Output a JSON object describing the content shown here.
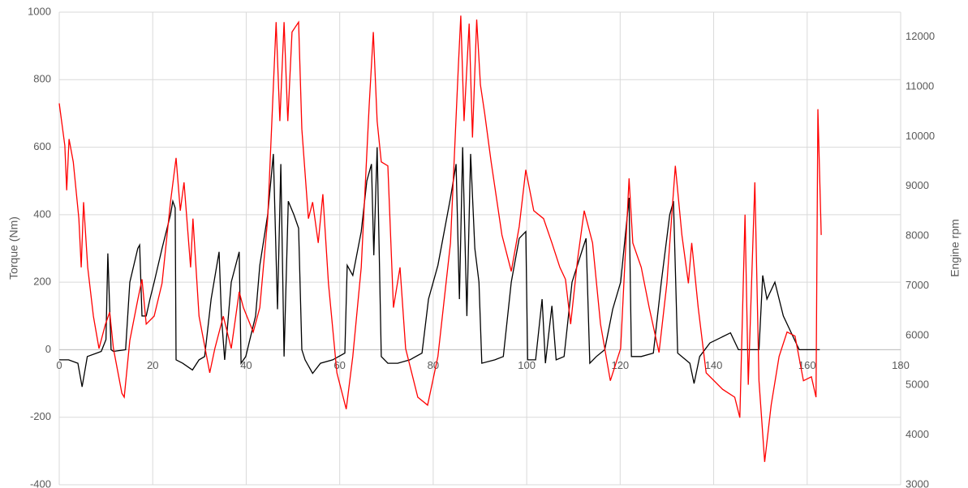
{
  "chart_data": {
    "type": "line",
    "ylabel": "Torque (Nm)",
    "y2label": "Engine rpm",
    "xlim": [
      0,
      180
    ],
    "xticks": [
      0,
      20,
      40,
      60,
      80,
      100,
      120,
      140,
      160,
      180
    ],
    "ylim": [
      -400,
      1000
    ],
    "yticks": [
      -400,
      -200,
      0,
      200,
      400,
      600,
      800,
      1000
    ],
    "y2lim": [
      3000,
      12500
    ],
    "y2ticks": [
      3000,
      4000,
      5000,
      6000,
      7000,
      8000,
      9000,
      10000,
      11000,
      12000
    ],
    "grid": true,
    "series": [
      {
        "color": "#000000",
        "axis": "y",
        "x": [
          0,
          2,
          4,
          4.9,
          6,
          8,
          9,
          10,
          10.4,
          11.1,
          11.6,
          14.2,
          15.1,
          16.8,
          17.2,
          17.7,
          18.6,
          19.4,
          20.3,
          22,
          23.8,
          24.3,
          24.8,
          25,
          26.4,
          28.5,
          29.9,
          31.1,
          32.5,
          34.2,
          34.7,
          35.4,
          36.8,
          38.5,
          38.9,
          39.9,
          42,
          42.9,
          44.6,
          45.8,
          46.7,
          47.4,
          48.1,
          49,
          50.2,
          51.2,
          51.9,
          52.6,
          54.2,
          55.9,
          58.5,
          61.1,
          61.6,
          62.8,
          64.6,
          65.8,
          66.8,
          67.3,
          68,
          68.9,
          70.3,
          72.4,
          75,
          77.6,
          79,
          81,
          83.7,
          84.9,
          85.6,
          86.3,
          87.2,
          88,
          88.9,
          89.8,
          90.4,
          93.2,
          95,
          96.7,
          98.4,
          99.8,
          100.2,
          101.9,
          103.3,
          104,
          105.4,
          106.3,
          108,
          109.7,
          112,
          112.7,
          113.5,
          114.9,
          116.7,
          118.4,
          120.1,
          121.9,
          122.4,
          124.5,
          127.1,
          128.8,
          130.6,
          131.4,
          132.3,
          134.9,
          135.8,
          137,
          139.2,
          143.6,
          145.3,
          149.7,
          150.5,
          151.4,
          153.1,
          154.9,
          156.6,
          158.3,
          162.7
        ],
        "values": [
          -30,
          -30,
          -40,
          -110,
          -20,
          -10,
          -5,
          30,
          285,
          0,
          -5,
          0,
          200,
          300,
          310,
          100,
          100,
          150,
          200,
          300,
          400,
          440,
          420,
          -30,
          -40,
          -60,
          -30,
          -20,
          150,
          290,
          100,
          -30,
          200,
          290,
          -40,
          -20,
          100,
          250,
          400,
          580,
          120,
          550,
          -20,
          440,
          400,
          360,
          0,
          -30,
          -70,
          -40,
          -30,
          -10,
          250,
          220,
          350,
          500,
          550,
          280,
          600,
          -20,
          -40,
          -40,
          -30,
          -10,
          150,
          250,
          450,
          550,
          150,
          600,
          100,
          580,
          300,
          200,
          -40,
          -30,
          -20,
          200,
          330,
          350,
          -30,
          -30,
          150,
          -40,
          130,
          -30,
          -20,
          200,
          300,
          330,
          -40,
          -20,
          0,
          120,
          200,
          450,
          -20,
          -20,
          -10,
          200,
          400,
          440,
          -10,
          -40,
          -100,
          -20,
          20,
          50,
          0,
          0,
          220,
          150,
          200,
          100,
          50,
          0,
          0
        ]
      },
      {
        "color": "#ff0000",
        "axis": "y2",
        "x": [
          0,
          1.2,
          1.6,
          2.1,
          3,
          4.2,
          4.7,
          5.2,
          6.1,
          7.3,
          8.5,
          9.9,
          10.8,
          11.6,
          13.4,
          13.9,
          15.1,
          16.8,
          17.7,
          18.6,
          20.3,
          22,
          23.8,
          25,
          25.9,
          26.7,
          28.1,
          28.6,
          29.9,
          32.2,
          33.3,
          35.1,
          36.8,
          38.5,
          39.4,
          41.5,
          42.9,
          44.6,
          46.4,
          47.2,
          48.1,
          48.9,
          49.8,
          51.2,
          51.9,
          53.3,
          54.2,
          55.4,
          56.4,
          57.6,
          59.4,
          61.4,
          62.8,
          64.6,
          66.3,
          67.2,
          68,
          68.9,
          70.3,
          71.5,
          72.9,
          74.1,
          76.7,
          78.8,
          81,
          83.7,
          85.4,
          85.9,
          86.6,
          87.7,
          88.4,
          89.3,
          90.1,
          91,
          92.4,
          94.7,
          96.7,
          98.4,
          99.8,
          101.5,
          103.6,
          105.4,
          107.1,
          108.3,
          109.4,
          110.9,
          112.3,
          114.1,
          115.8,
          117.9,
          120.1,
          121.9,
          122.7,
          124.5,
          126.2,
          128.3,
          130,
          131.8,
          133.2,
          134.6,
          135.3,
          136.7,
          138.4,
          141.9,
          144.5,
          145.6,
          146.7,
          147.4,
          148.8,
          149.7,
          150.9,
          152.3,
          154,
          155.7,
          157.4,
          159.2,
          160.9,
          161.9,
          162.3,
          163
        ],
        "values": [
          10667,
          9820,
          8920,
          9950,
          9490,
          8350,
          7370,
          8680,
          7370,
          6390,
          5740,
          6230,
          6470,
          5740,
          4840,
          4760,
          5900,
          6720,
          7130,
          6230,
          6390,
          7050,
          8680,
          9570,
          8510,
          9080,
          7370,
          8350,
          6390,
          5250,
          5740,
          6390,
          5740,
          6880,
          6560,
          6070,
          6560,
          8350,
          12300,
          10310,
          12300,
          10310,
          12100,
          12300,
          10150,
          8350,
          8680,
          7860,
          8840,
          7050,
          5250,
          4520,
          5580,
          7370,
          10630,
          12100,
          10310,
          9490,
          9410,
          6560,
          7370,
          5740,
          4760,
          4600,
          5580,
          7860,
          11450,
          12430,
          10310,
          12270,
          9980,
          12350,
          11040,
          10470,
          9490,
          8020,
          7290,
          8190,
          9330,
          8510,
          8350,
          7860,
          7370,
          7130,
          6230,
          7540,
          8510,
          7860,
          6230,
          5090,
          5740,
          9160,
          7860,
          7370,
          6560,
          5660,
          7050,
          9410,
          8020,
          7050,
          7860,
          6560,
          5250,
          4920,
          4760,
          4350,
          8430,
          5010,
          9080,
          5090,
          3460,
          4600,
          5580,
          6070,
          5990,
          5090,
          5170,
          4760,
          10550,
          8020
        ]
      }
    ]
  }
}
